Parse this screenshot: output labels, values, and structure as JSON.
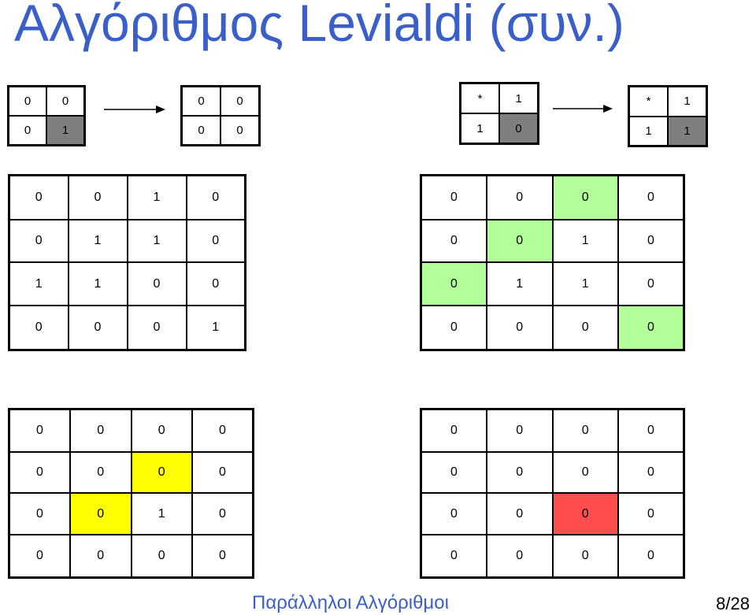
{
  "title": "Αλγόριθμος Levialdi (συν.)",
  "colors": {
    "gray": "#7f7f7f",
    "green": "#b3ff99",
    "yellow": "#ffff00",
    "red": "#ff4d4d",
    "title_blue": "#3a5fc8"
  },
  "rule1": {
    "before": [
      [
        "0",
        "0"
      ],
      [
        "0",
        "1"
      ]
    ],
    "after": [
      [
        "0",
        "0"
      ],
      [
        "0",
        "0"
      ]
    ],
    "before_highlight": [
      [
        null,
        null
      ],
      [
        null,
        "gray"
      ]
    ]
  },
  "rule2": {
    "before": [
      [
        "*",
        "1"
      ],
      [
        "1",
        "0"
      ]
    ],
    "after": [
      [
        "*",
        "1"
      ],
      [
        "1",
        "1"
      ]
    ],
    "before_highlight": [
      [
        null,
        null
      ],
      [
        null,
        "gray"
      ]
    ],
    "after_highlight": [
      [
        null,
        null
      ],
      [
        null,
        "gray"
      ]
    ]
  },
  "grid_a": {
    "cells": [
      [
        "0",
        "0",
        "1",
        "0"
      ],
      [
        "0",
        "1",
        "1",
        "0"
      ],
      [
        "1",
        "1",
        "0",
        "0"
      ],
      [
        "0",
        "0",
        "0",
        "1"
      ]
    ]
  },
  "grid_b": {
    "cells": [
      [
        "0",
        "0",
        "0",
        "0"
      ],
      [
        "0",
        "0",
        "1",
        "0"
      ],
      [
        "0",
        "1",
        "1",
        "0"
      ],
      [
        "0",
        "0",
        "0",
        "0"
      ]
    ],
    "highlight": [
      [
        null,
        null,
        "green",
        null
      ],
      [
        null,
        "green",
        null,
        null
      ],
      [
        "green",
        null,
        null,
        null
      ],
      [
        null,
        null,
        null,
        "green"
      ]
    ]
  },
  "grid_c": {
    "cells": [
      [
        "0",
        "0",
        "0",
        "0"
      ],
      [
        "0",
        "0",
        "0",
        "0"
      ],
      [
        "0",
        "0",
        "1",
        "0"
      ],
      [
        "0",
        "0",
        "0",
        "0"
      ]
    ],
    "highlight": [
      [
        null,
        null,
        null,
        null
      ],
      [
        null,
        null,
        "yellow",
        null
      ],
      [
        null,
        "yellow",
        null,
        null
      ],
      [
        null,
        null,
        null,
        null
      ]
    ]
  },
  "grid_d": {
    "cells": [
      [
        "0",
        "0",
        "0",
        "0"
      ],
      [
        "0",
        "0",
        "0",
        "0"
      ],
      [
        "0",
        "0",
        "0",
        "0"
      ],
      [
        "0",
        "0",
        "0",
        "0"
      ]
    ],
    "highlight": [
      [
        null,
        null,
        null,
        null
      ],
      [
        null,
        null,
        null,
        null
      ],
      [
        null,
        null,
        "red",
        null
      ],
      [
        null,
        null,
        null,
        null
      ]
    ]
  },
  "footer": "Παράλληλοι Αλγόριθμοι",
  "page": "8/28"
}
